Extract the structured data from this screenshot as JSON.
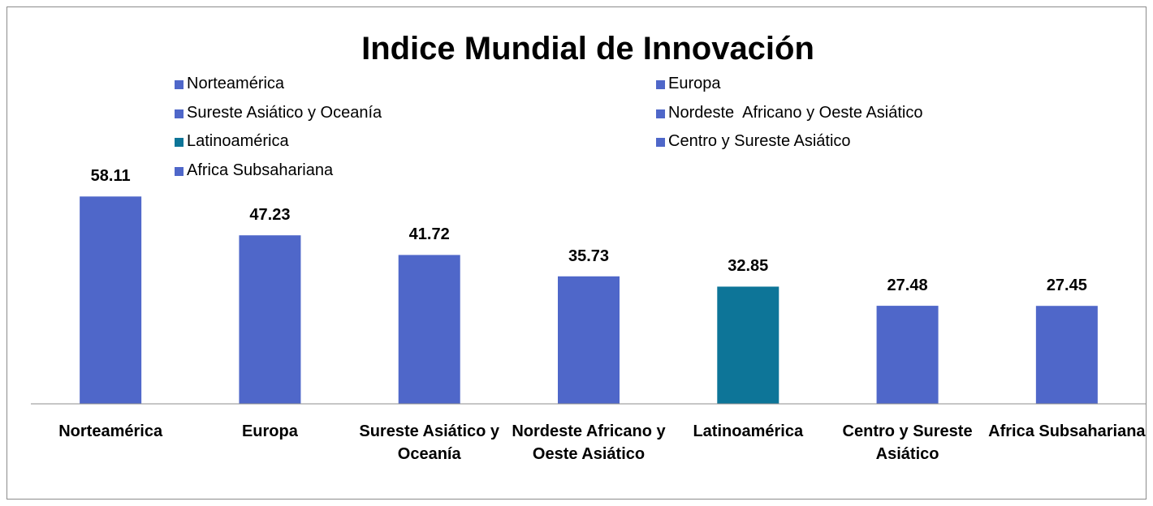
{
  "chart_data": {
    "type": "bar",
    "title": "Indice Mundial de Innovación",
    "categories": [
      "Norteamérica",
      "Europa",
      "Sureste Asiático y Oceanía",
      "Nordeste Africano y Oeste Asiático",
      "Latinoamérica",
      "Centro y Sureste Asiático",
      "Africa Subsahariana"
    ],
    "legend_labels": [
      "Norteamérica",
      "Europa",
      "Sureste Asiático y Oceanía",
      "Nordeste  Africano y Oeste Asiático",
      "Latinoamérica",
      "Centro y Sureste Asiático",
      "Africa Subsahariana"
    ],
    "values": [
      58.11,
      47.23,
      41.72,
      35.73,
      32.85,
      27.48,
      27.45
    ],
    "colors": [
      "#4f67c9",
      "#4f67c9",
      "#4f67c9",
      "#4f67c9",
      "#0d7598",
      "#4f67c9",
      "#4f67c9"
    ],
    "ylim": [
      0,
      70
    ]
  }
}
